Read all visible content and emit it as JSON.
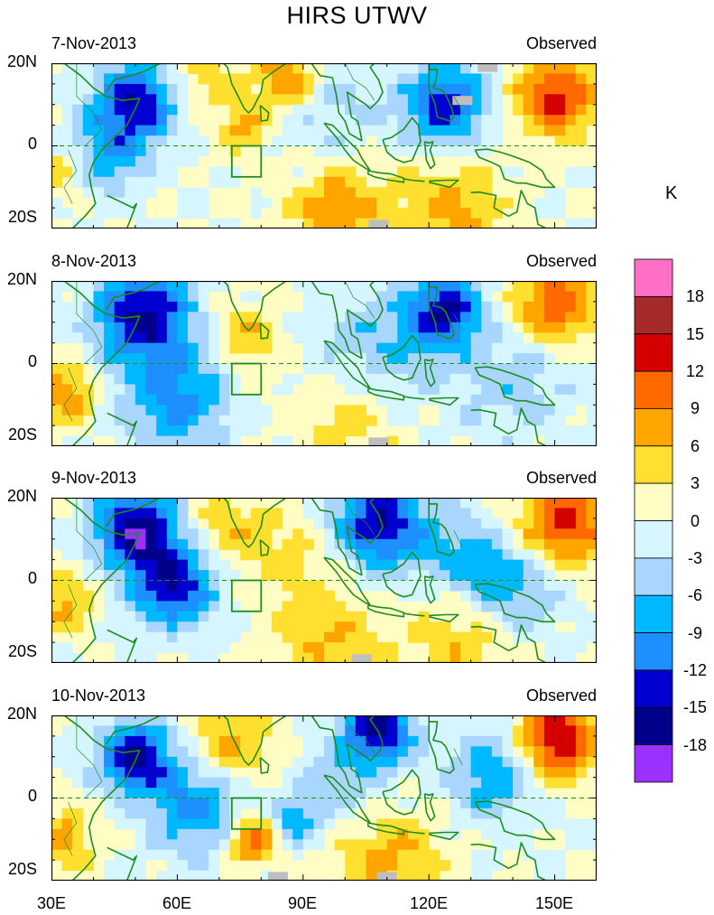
{
  "figure": {
    "title": "HIRS UTWV",
    "unit_label": "K"
  },
  "panels": [
    {
      "date": "7-Nov-2013",
      "tag": "Observed",
      "lat_labels": [
        "20N",
        "0",
        "20S"
      ]
    },
    {
      "date": "8-Nov-2013",
      "tag": "Observed",
      "lat_labels": [
        "20N",
        "0",
        "20S"
      ]
    },
    {
      "date": "9-Nov-2013",
      "tag": "Observed",
      "lat_labels": [
        "20N",
        "0",
        "20S"
      ]
    },
    {
      "date": "10-Nov-2013",
      "tag": "Observed",
      "lat_labels": [
        "20N",
        "0",
        "20S"
      ]
    }
  ],
  "x_axis": {
    "ticks": [
      "30E",
      "60E",
      "90E",
      "120E",
      "150E"
    ],
    "lon_range": [
      30,
      160
    ]
  },
  "colorbar": {
    "levels": [
      "18",
      "15",
      "12",
      "9",
      "6",
      "3",
      "0",
      "-3",
      "-6",
      "-9",
      "-12",
      "-15",
      "-18"
    ],
    "colors": [
      "#ff6ec7",
      "#a52a2a",
      "#d40000",
      "#ff6a00",
      "#ffa500",
      "#ffe030",
      "#fffcc4",
      "#d6f6ff",
      "#a8d6ff",
      "#00b8ff",
      "#1e8fff",
      "#0000d0",
      "#00008b",
      "#9b30ff"
    ]
  },
  "colors": {
    "coastline": "#1e8c1e",
    "missing": "#bebebe"
  },
  "anomaly_blobs": [
    [
      {
        "lon": 50,
        "lat": 10,
        "v": -15,
        "s": 7
      },
      {
        "lon": 42,
        "lat": -3,
        "v": -8,
        "s": 6
      },
      {
        "lon": 124,
        "lat": 10,
        "v": -14,
        "s": 7
      },
      {
        "lon": 96,
        "lat": 8,
        "v": -4,
        "s": 9
      },
      {
        "lon": 68,
        "lat": 15,
        "v": 5,
        "s": 6
      },
      {
        "lon": 98,
        "lat": -15,
        "v": 8,
        "s": 8
      },
      {
        "lon": 125,
        "lat": -16,
        "v": 7,
        "s": 9
      },
      {
        "lon": 150,
        "lat": 12,
        "v": 13,
        "s": 7
      },
      {
        "lon": 76,
        "lat": 4,
        "v": 7,
        "s": 4
      },
      {
        "lon": 33,
        "lat": -6,
        "v": 6,
        "s": 4
      },
      {
        "lon": 86,
        "lat": 16,
        "v": 10,
        "s": 5
      }
    ],
    [
      {
        "lon": 52,
        "lat": 12,
        "v": -16,
        "s": 8
      },
      {
        "lon": 60,
        "lat": -8,
        "v": -10,
        "s": 9
      },
      {
        "lon": 124,
        "lat": 13,
        "v": -15,
        "s": 6
      },
      {
        "lon": 108,
        "lat": 4,
        "v": -6,
        "s": 10
      },
      {
        "lon": 76,
        "lat": 6,
        "v": 6,
        "s": 6
      },
      {
        "lon": 100,
        "lat": -14,
        "v": 5,
        "s": 9
      },
      {
        "lon": 150,
        "lat": 14,
        "v": 12,
        "s": 7
      },
      {
        "lon": 140,
        "lat": -4,
        "v": -5,
        "s": 10
      },
      {
        "lon": 33,
        "lat": -7,
        "v": 9,
        "s": 5
      }
    ],
    [
      {
        "lon": 50,
        "lat": 13,
        "v": -17,
        "s": 7
      },
      {
        "lon": 59,
        "lat": -1,
        "v": -15,
        "s": 7
      },
      {
        "lon": 108,
        "lat": 14,
        "v": -15,
        "s": 8
      },
      {
        "lon": 128,
        "lat": 6,
        "v": -6,
        "s": 8
      },
      {
        "lon": 140,
        "lat": -2,
        "v": -8,
        "s": 8
      },
      {
        "lon": 72,
        "lat": 13,
        "v": 5,
        "s": 7
      },
      {
        "lon": 88,
        "lat": 6,
        "v": 4,
        "s": 8
      },
      {
        "lon": 96,
        "lat": -14,
        "v": 6,
        "s": 9
      },
      {
        "lon": 128,
        "lat": -14,
        "v": 6,
        "s": 9
      },
      {
        "lon": 152,
        "lat": 14,
        "v": 13,
        "s": 8
      },
      {
        "lon": 33,
        "lat": -6,
        "v": 7,
        "s": 5
      }
    ],
    [
      {
        "lon": 50,
        "lat": 10,
        "v": -16,
        "s": 6
      },
      {
        "lon": 64,
        "lat": -2,
        "v": -10,
        "s": 8
      },
      {
        "lon": 108,
        "lat": 17,
        "v": -15,
        "s": 6
      },
      {
        "lon": 136,
        "lat": 6,
        "v": -9,
        "s": 8
      },
      {
        "lon": 78,
        "lat": -10,
        "v": 12,
        "s": 4
      },
      {
        "lon": 73,
        "lat": 13,
        "v": 7,
        "s": 7
      },
      {
        "lon": 150,
        "lat": 14,
        "v": 16,
        "s": 7
      },
      {
        "lon": 110,
        "lat": -14,
        "v": 7,
        "s": 9
      },
      {
        "lon": 100,
        "lat": 4,
        "v": -5,
        "s": 8
      },
      {
        "lon": 88,
        "lat": -6,
        "v": -8,
        "s": 4
      },
      {
        "lon": 33,
        "lat": -10,
        "v": 8,
        "s": 5
      }
    ]
  ],
  "missing_cells": [
    [
      [
        134,
        19
      ],
      [
        128,
        11
      ],
      [
        108,
        -19
      ]
    ],
    [
      [
        108,
        -19
      ]
    ],
    [
      [
        104,
        -19
      ]
    ],
    [
      [
        84,
        -19
      ],
      [
        110,
        -19
      ]
    ]
  ]
}
